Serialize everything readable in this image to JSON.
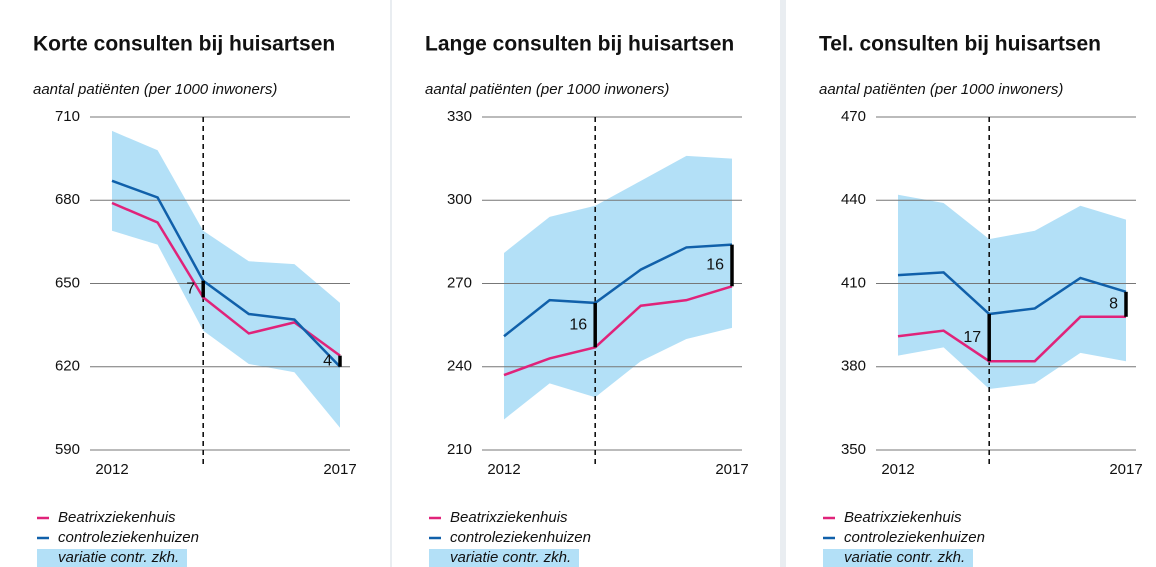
{
  "chart_data": [
    {
      "type": "line",
      "title": "Korte consulten bij huisartsen",
      "y_label": "aantal patiënten (per 1000 inwoners)",
      "x": [
        2012,
        2013,
        2014,
        2015,
        2016,
        2017
      ],
      "xlim": [
        2012,
        2017
      ],
      "xticks": [
        2012,
        2017
      ],
      "ylim": [
        590,
        710
      ],
      "yticks": [
        590,
        620,
        650,
        680,
        710
      ],
      "grid": true,
      "marker_x": 2014,
      "series": [
        {
          "name": "Beatrixziekenhuis",
          "color": "#e0237a",
          "values": [
            679,
            672,
            645,
            632,
            636,
            624
          ]
        },
        {
          "name": "controleziekenhuizen",
          "color": "#1060aa",
          "values": [
            687,
            681,
            651,
            639,
            637,
            620
          ]
        }
      ],
      "band": {
        "name": "variatie contr. zkh.",
        "color": "#b3e0f7",
        "upper": [
          705,
          698,
          669,
          658,
          657,
          643
        ],
        "lower": [
          669,
          664,
          633,
          621,
          618,
          598
        ]
      },
      "annotations": [
        {
          "x": 2014,
          "label": "7"
        },
        {
          "x": 2017,
          "label": "4"
        }
      ]
    },
    {
      "type": "line",
      "title": "Lange consulten bij huisartsen",
      "y_label": "aantal patiënten (per 1000 inwoners)",
      "x": [
        2012,
        2013,
        2014,
        2015,
        2016,
        2017
      ],
      "xlim": [
        2012,
        2017
      ],
      "xticks": [
        2012,
        2017
      ],
      "ylim": [
        210,
        330
      ],
      "yticks": [
        210,
        240,
        270,
        300,
        330
      ],
      "grid": true,
      "marker_x": 2014,
      "series": [
        {
          "name": "Beatrixziekenhuis",
          "color": "#e0237a",
          "values": [
            237,
            243,
            247,
            262,
            264,
            269
          ]
        },
        {
          "name": "controleziekenhuizen",
          "color": "#1060aa",
          "values": [
            251,
            264,
            263,
            275,
            283,
            284
          ]
        }
      ],
      "band": {
        "name": "variatie contr. zkh.",
        "color": "#b3e0f7",
        "upper": [
          281,
          294,
          298,
          307,
          316,
          315
        ],
        "lower": [
          221,
          234,
          229,
          242,
          250,
          254
        ]
      },
      "annotations": [
        {
          "x": 2014,
          "label": "16"
        },
        {
          "x": 2017,
          "label": "16"
        }
      ]
    },
    {
      "type": "line",
      "title": "Tel. consulten bij huisartsen",
      "y_label": "aantal patiënten (per 1000 inwoners)",
      "x": [
        2012,
        2013,
        2014,
        2015,
        2016,
        2017
      ],
      "xlim": [
        2012,
        2017
      ],
      "xticks": [
        2012,
        2017
      ],
      "ylim": [
        350,
        470
      ],
      "yticks": [
        350,
        380,
        410,
        440,
        470
      ],
      "grid": true,
      "marker_x": 2014,
      "series": [
        {
          "name": "Beatrixziekenhuis",
          "color": "#e0237a",
          "values": [
            391,
            393,
            382,
            382,
            398,
            398
          ]
        },
        {
          "name": "controleziekenhuizen",
          "color": "#1060aa",
          "values": [
            413,
            414,
            399,
            401,
            412,
            407
          ]
        }
      ],
      "band": {
        "name": "variatie contr. zkh.",
        "color": "#b3e0f7",
        "upper": [
          442,
          439,
          426,
          429,
          438,
          433
        ],
        "lower": [
          384,
          387,
          372,
          374,
          385,
          382
        ]
      },
      "annotations": [
        {
          "x": 2014,
          "label": "17"
        },
        {
          "x": 2017,
          "label": "8"
        }
      ]
    }
  ]
}
